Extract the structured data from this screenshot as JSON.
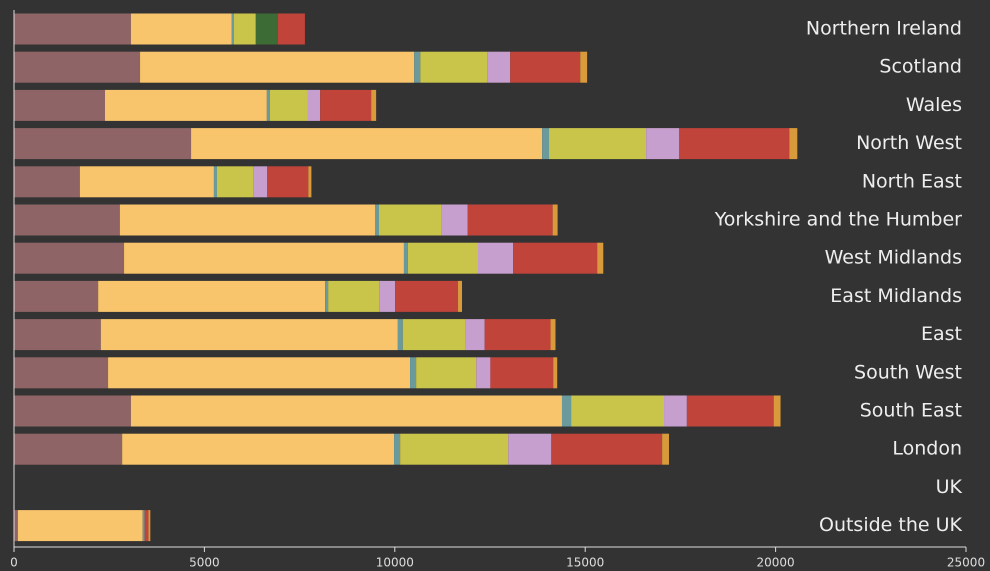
{
  "chart_data": {
    "type": "stacked-bar-horizontal",
    "categories": [
      "Northern Ireland",
      "Scotland",
      "Wales",
      "North West",
      "North East",
      "Yorkshire and the Humber",
      "West Midlands",
      "East Midlands",
      "East",
      "South West",
      "South East",
      "London",
      "UK",
      "Outside the UK"
    ],
    "series": [
      {
        "color": "#8f6466",
        "values": [
          3070,
          3310,
          2390,
          4650,
          1730,
          2780,
          2890,
          2210,
          2280,
          2470,
          3070,
          2840,
          0,
          100
        ]
      },
      {
        "color": "#f9c56c",
        "values": [
          2650,
          7200,
          4250,
          9220,
          3520,
          6700,
          7350,
          5960,
          7800,
          7930,
          11320,
          7140,
          0,
          3280
        ]
      },
      {
        "color": "#6a9a9b",
        "values": [
          50,
          160,
          80,
          180,
          80,
          105,
          105,
          80,
          130,
          160,
          240,
          160,
          0,
          50
        ]
      },
      {
        "color": "#c9c44a",
        "values": [
          580,
          1760,
          1000,
          2550,
          950,
          1650,
          1840,
          1340,
          1650,
          1580,
          2440,
          2840,
          0,
          0
        ]
      },
      {
        "color": "#3d6b35",
        "values": [
          580,
          0,
          0,
          0,
          0,
          0,
          0,
          0,
          0,
          0,
          0,
          0,
          0,
          0
        ]
      },
      {
        "color": "#c79fce",
        "values": [
          0,
          600,
          320,
          870,
          370,
          680,
          920,
          420,
          500,
          370,
          600,
          1130,
          0,
          0
        ]
      },
      {
        "color": "#c0443a",
        "values": [
          710,
          1840,
          1340,
          2890,
          1080,
          2230,
          2210,
          1650,
          1730,
          1650,
          2280,
          2910,
          0,
          100
        ]
      },
      {
        "color": "#d99a3c",
        "values": [
          0,
          180,
          130,
          210,
          80,
          130,
          160,
          105,
          130,
          105,
          180,
          180,
          0,
          50
        ]
      }
    ],
    "xlim": [
      0,
      25000
    ],
    "xticks": [
      0,
      5000,
      10000,
      15000,
      20000,
      25000
    ]
  }
}
